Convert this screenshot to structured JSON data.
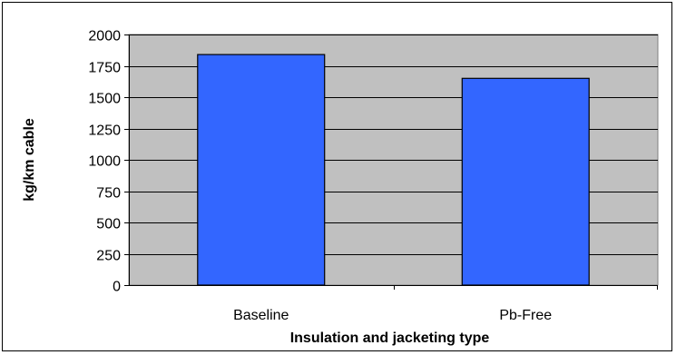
{
  "chart_data": {
    "type": "bar",
    "title": "",
    "xlabel": "Insulation and jacketing type",
    "ylabel": "kg/km cable",
    "categories": [
      "Baseline",
      "Pb-Free"
    ],
    "values": [
      1840,
      1650
    ],
    "ylim": [
      0,
      2000
    ],
    "yticks": [
      0,
      250,
      500,
      750,
      1000,
      1250,
      1500,
      1750,
      2000
    ],
    "grid": true,
    "legend": "none",
    "colors": {
      "bar_fill": "#3366ff",
      "bar_stroke": "#000000",
      "plot_background": "#c0c0c0",
      "gridline": "#000000"
    }
  }
}
